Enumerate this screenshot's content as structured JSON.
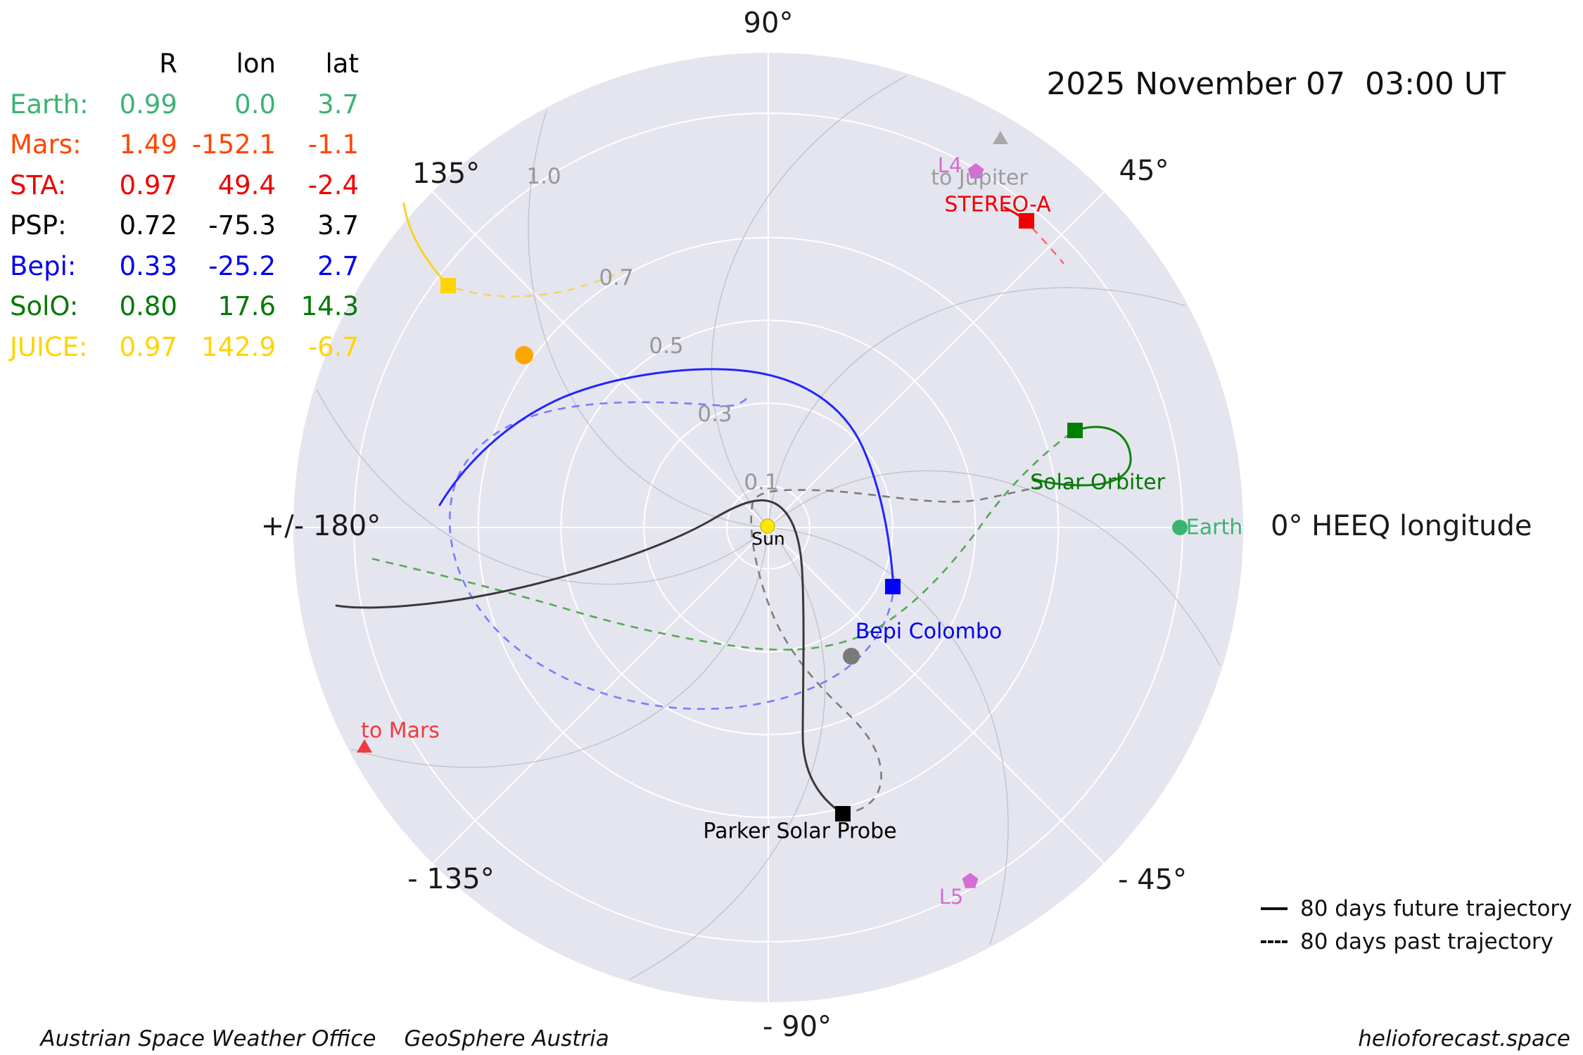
{
  "header": {
    "datetime": "2025 November 07  03:00 UT"
  },
  "table": {
    "headers": {
      "r": "R",
      "lon": "lon",
      "lat": "lat"
    },
    "rows": [
      {
        "name": "Earth:",
        "r": "0.99",
        "lon": "0.0",
        "lat": "3.7"
      },
      {
        "name": "Mars:",
        "r": "1.49",
        "lon": "-152.1",
        "lat": "-1.1"
      },
      {
        "name": "STA:",
        "r": "0.97",
        "lon": "49.4",
        "lat": "-2.4"
      },
      {
        "name": "PSP:",
        "r": "0.72",
        "lon": "-75.3",
        "lat": "3.7"
      },
      {
        "name": "Bepi:",
        "r": "0.33",
        "lon": "-25.2",
        "lat": "2.7"
      },
      {
        "name": "SolO:",
        "r": "0.80",
        "lon": "17.6",
        "lat": "14.3"
      },
      {
        "name": "JUICE:",
        "r": "0.97",
        "lon": "142.9",
        "lat": "-6.7"
      }
    ]
  },
  "axis": {
    "a90": "90°",
    "a45": "45°",
    "a0": "0° HEEQ longitude",
    "am45": "- 45°",
    "am90": "- 90°",
    "am135": "- 135°",
    "a180": "+/- 180°",
    "a135": "135°",
    "r01": "0.1",
    "r03": "0.3",
    "r05": "0.5",
    "r07": "0.7",
    "r10": "1.0"
  },
  "labels": {
    "sun": "Sun",
    "earth": "Earth",
    "stereo": "STEREO-A",
    "solo": "Solar Orbiter",
    "bepi": "Bepi Colombo",
    "psp": "Parker Solar Probe",
    "l4": "L4",
    "l5": "L5",
    "to_jupiter": "to Jupiter",
    "to_mars": "to Mars"
  },
  "legend": {
    "future": "80 days future trajectory",
    "past": "80 days past trajectory"
  },
  "footer": {
    "left1": "Austrian Space Weather Office",
    "left2": "GeoSphere Austria",
    "right": "helioforecast.space"
  },
  "colors": {
    "earth": "#3cb371",
    "mars": "#ff4500",
    "sta": "#f00000",
    "psp": "#000000",
    "bepi": "#0000ff",
    "solo": "#008000",
    "juice": "#ffd400",
    "venus": "#ffa500",
    "mercury": "#7a7a7a",
    "sun": "#ffe800",
    "lagrange": "#d46ed4",
    "direction_gray": "#a9a9a9",
    "to_mars": "#ee3b3b"
  },
  "chart_data": {
    "type": "scatter",
    "projection": "polar",
    "title": "2025 November 07  03:00 UT",
    "radial_unit": "AU",
    "radial_ticks": [
      0.1,
      0.3,
      0.5,
      0.7,
      1.0
    ],
    "radial_max": 1.15,
    "angle_axis": "HEEQ longitude, 0° at right (Earth direction)",
    "angle_ticks_deg": [
      90,
      45,
      0,
      -45,
      -90,
      -135,
      180,
      135
    ],
    "grid": "white spokes every 45° and circles at radial ticks; gray Parker-spiral field lines",
    "legend_position": "bottom-right",
    "legend": [
      "solid = 80 days future trajectory",
      "dashed = 80 days past trajectory"
    ],
    "bodies": [
      {
        "name": "Earth",
        "R_au": 0.99,
        "lon_deg": 0.0,
        "lat_deg": 3.7,
        "marker": "circle",
        "color": "#3cb371"
      },
      {
        "name": "Mars",
        "R_au": 1.49,
        "lon_deg": -152.1,
        "lat_deg": -1.1,
        "marker": "off-plot, shown as 'to Mars' triangle",
        "color": "#ff4500"
      },
      {
        "name": "STEREO-A",
        "abbrev": "STA",
        "R_au": 0.97,
        "lon_deg": 49.4,
        "lat_deg": -2.4,
        "marker": "square",
        "color": "#f00000"
      },
      {
        "name": "Parker Solar Probe",
        "abbrev": "PSP",
        "R_au": 0.72,
        "lon_deg": -75.3,
        "lat_deg": 3.7,
        "marker": "square",
        "color": "#000000"
      },
      {
        "name": "Bepi Colombo",
        "abbrev": "Bepi",
        "R_au": 0.33,
        "lon_deg": -25.2,
        "lat_deg": 2.7,
        "marker": "square",
        "color": "#0000ff"
      },
      {
        "name": "Solar Orbiter",
        "abbrev": "SolO",
        "R_au": 0.8,
        "lon_deg": 17.6,
        "lat_deg": 14.3,
        "marker": "square",
        "color": "#008000"
      },
      {
        "name": "JUICE",
        "R_au": 0.97,
        "lon_deg": 142.9,
        "lat_deg": -6.7,
        "marker": "square",
        "color": "#ffd400"
      },
      {
        "name": "Sun",
        "R_au": 0.0,
        "marker": "circle",
        "color": "#ffe800"
      },
      {
        "name": "Venus (unlabeled)",
        "R_au": 0.72,
        "lon_deg": 145,
        "marker": "circle",
        "color": "#ffa500",
        "note": "estimated from plot"
      },
      {
        "name": "Mercury (unlabeled)",
        "R_au": 0.38,
        "lon_deg": -58,
        "marker": "circle",
        "color": "#7a7a7a",
        "note": "estimated from plot"
      },
      {
        "name": "L4",
        "R_au": 0.99,
        "lon_deg": 60,
        "marker": "pentagon",
        "color": "#d46ed4"
      },
      {
        "name": "L5",
        "R_au": 0.99,
        "lon_deg": -60,
        "marker": "pentagon",
        "color": "#d46ed4"
      },
      {
        "name": "to Jupiter",
        "marker": "direction triangle at plot edge",
        "color": "#a9a9a9"
      },
      {
        "name": "to Mars",
        "marker": "direction triangle at plot edge",
        "color": "#ee3b3b"
      }
    ]
  }
}
